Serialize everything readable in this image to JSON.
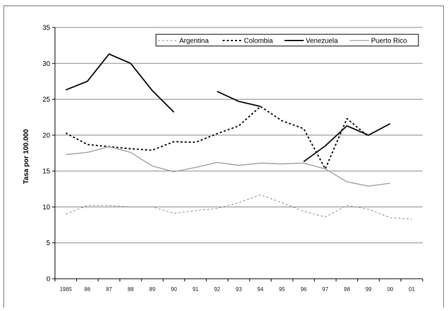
{
  "chart_data": {
    "type": "line",
    "ylabel": "Tasa por 100.000",
    "xlabel": "",
    "ylim": [
      0,
      35
    ],
    "yticks": [
      0,
      5,
      10,
      15,
      20,
      25,
      30,
      35
    ],
    "categories": [
      "1985",
      "86",
      "87",
      "88",
      "89",
      "90",
      "91",
      "92",
      "93",
      "94",
      "95",
      "96",
      "97",
      "98",
      "99",
      "00",
      "01"
    ],
    "grid": "horizontal",
    "legend_position": "top-right",
    "series": [
      {
        "name": "Argentina",
        "style": "dotted-thin",
        "color": "#8c8c8c",
        "values": [
          9.0,
          10.2,
          10.2,
          10.0,
          10.0,
          9.1,
          9.5,
          9.8,
          10.6,
          11.7,
          10.6,
          9.4,
          8.6,
          10.2,
          9.7,
          8.5,
          8.3
        ]
      },
      {
        "name": "Colombia",
        "style": "dotted-thick",
        "color": "#1a1a1a",
        "values": [
          20.3,
          18.7,
          18.4,
          18.1,
          17.9,
          19.1,
          19.0,
          20.2,
          21.3,
          24.0,
          22.0,
          20.9,
          15.3,
          22.3,
          19.8,
          null,
          null
        ]
      },
      {
        "name": "Venezuela",
        "style": "solid-thick",
        "color": "#1a1a1a",
        "values": [
          26.3,
          27.5,
          31.3,
          30.0,
          26.2,
          23.2,
          null,
          26.1,
          24.7,
          24.0,
          null,
          16.3,
          18.5,
          21.3,
          20.0,
          21.6,
          null
        ]
      },
      {
        "name": "Puerto Rico",
        "style": "solid-thin",
        "color": "#9a9a9a",
        "values": [
          17.3,
          17.6,
          18.4,
          17.6,
          15.7,
          14.9,
          15.5,
          16.2,
          15.8,
          16.1,
          16.0,
          16.1,
          15.3,
          13.5,
          12.9,
          13.3,
          null
        ]
      }
    ]
  }
}
